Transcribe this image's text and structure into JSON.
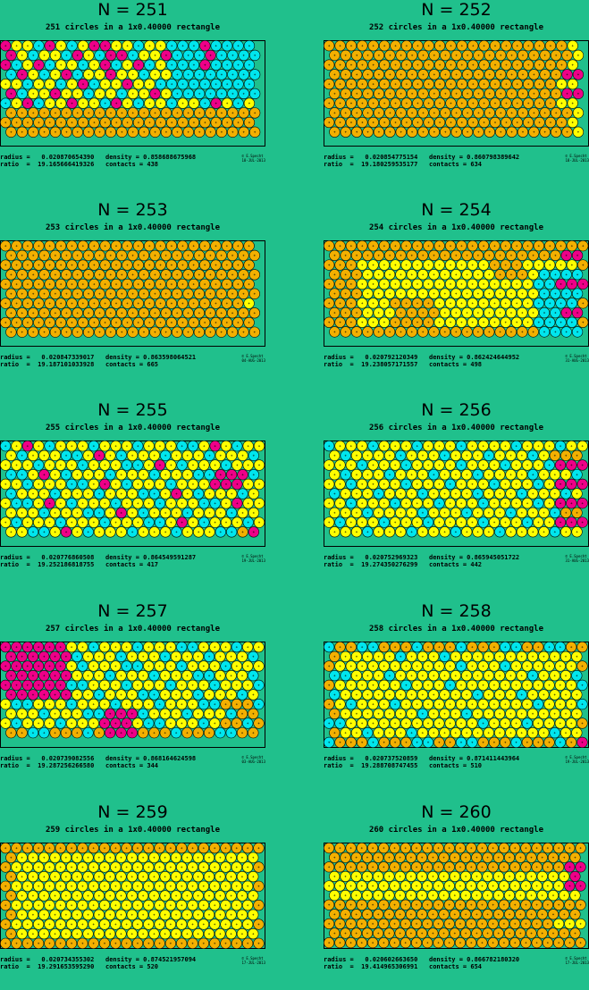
{
  "colors": {
    "background": "#20c08c",
    "rect": "#20c08c",
    "gold": "#f3b000",
    "yellow": "#ffff00",
    "cyan": "#00e6ee",
    "magenta": "#ee0088"
  },
  "panels": [
    {
      "n_label": "N = 251",
      "subtitle": "251 circles in a 1x0.40000 rectangle",
      "radius_line": "radius =   0.020870654390   density = 0.858688675968",
      "ratio_line": "ratio  =  19.165666419326   contacts = 438",
      "credit": [
        "© E.Specht",
        "18-JUL-2013"
      ],
      "pattern": "mixed-stripes",
      "radius": 0.02087065439,
      "diameter_ratio": 19.165666419326,
      "density": 0.858688675968,
      "contacts": 438
    },
    {
      "n_label": "N = 252",
      "subtitle": "252 circles in a 1x0.40000 rectangle",
      "radius_line": "radius =   0.020854775154   density = 0.860798389642",
      "ratio_line": "ratio  =  19.180259535177   contacts = 634",
      "credit": [
        "© E.Specht",
        "18-JUL-2013"
      ],
      "pattern": "mostly-gold",
      "radius": 0.020854775154,
      "diameter_ratio": 19.180259535177,
      "density": 0.860798389642,
      "contacts": 634
    },
    {
      "n_label": "N = 253",
      "subtitle": "253 circles in a 1x0.40000 rectangle",
      "radius_line": "radius =   0.020847339017   density = 0.863598064521",
      "ratio_line": "ratio  =  19.187101033928   contacts = 665",
      "credit": [
        "© E.Specht",
        "04-AUG-2013"
      ],
      "pattern": "all-gold",
      "radius": 0.020847339017,
      "diameter_ratio": 19.187101033928,
      "density": 0.863598064521,
      "contacts": 665
    },
    {
      "n_label": "N = 254",
      "subtitle": "254 circles in a 1x0.40000 rectangle",
      "radius_line": "radius =   0.020792120349   density = 0.862424644952",
      "ratio_line": "ratio  =  19.238057171557   contacts = 498",
      "credit": [
        "© E.Specht",
        "31-AUG-2013"
      ],
      "pattern": "gold-yellow-blend",
      "radius": 0.020792120349,
      "diameter_ratio": 19.238057171557,
      "density": 0.862424644952,
      "contacts": 498
    },
    {
      "n_label": "N = 255",
      "subtitle": "255 circles in a 1x0.40000 rectangle",
      "radius_line": "radius =   0.020776860508   density = 0.864549591287",
      "ratio_line": "ratio  =  19.252186818755   contacts = 417",
      "credit": [
        "© E.Specht",
        "19-JUL-2013"
      ],
      "pattern": "cyan-yellow-mix",
      "radius": 0.020776860508,
      "diameter_ratio": 19.252186818755,
      "density": 0.864549591287,
      "contacts": 417
    },
    {
      "n_label": "N = 256",
      "subtitle": "256 circles in a 1x0.40000 rectangle",
      "radius_line": "radius =   0.020752969323   density = 0.865945051722",
      "ratio_line": "ratio  =  19.274350276299   contacts = 442",
      "credit": [
        "© E.Specht",
        "31-AUG-2013"
      ],
      "pattern": "yellow-cyan",
      "radius": 0.020752969323,
      "diameter_ratio": 19.274350276299,
      "density": 0.865945051722,
      "contacts": 442
    },
    {
      "n_label": "N = 257",
      "subtitle": "257 circles in a 1x0.40000 rectangle",
      "radius_line": "radius =   0.020739082556   density = 0.868164624598",
      "ratio_line": "ratio  =  19.287256266580   contacts = 344",
      "credit": [
        "© E.Specht",
        "03-AUG-2013"
      ],
      "pattern": "magenta-left",
      "radius": 0.020739082556,
      "diameter_ratio": 19.28725626658,
      "density": 0.868164624598,
      "contacts": 344
    },
    {
      "n_label": "N = 258",
      "subtitle": "258 circles in a 1x0.40000 rectangle",
      "radius_line": "radius =   0.020737520859   density = 0.871411443964",
      "ratio_line": "ratio  =  19.288708747455   contacts = 510",
      "credit": [
        "© E.Specht",
        "19-JUL-2013"
      ],
      "pattern": "yellow-dominant",
      "radius": 0.020737520859,
      "diameter_ratio": 19.288708747455,
      "density": 0.871411443964,
      "contacts": 510
    },
    {
      "n_label": "N = 259",
      "subtitle": "259 circles in a 1x0.40000 rectangle",
      "radius_line": "radius =   0.020734355302   density = 0.874521957094",
      "ratio_line": "ratio  =  19.291653595290   contacts = 520",
      "credit": [
        "© E.Specht",
        "17-JUL-2013"
      ],
      "pattern": "yellow-gold-edge",
      "radius": 0.020734355302,
      "diameter_ratio": 19.29165359529,
      "density": 0.874521957094,
      "contacts": 520
    },
    {
      "n_label": "N = 260",
      "subtitle": "260 circles in a 1x0.40000 rectangle",
      "radius_line": "radius =   0.020602663650   density = 0.866782180320",
      "ratio_line": "ratio  =  19.414965306991   contacts = 654",
      "credit": [
        "© E.Specht",
        "17-JUL-2013"
      ],
      "pattern": "gold-yellow-bands",
      "radius": 0.02060266365,
      "diameter_ratio": 19.414965306991,
      "density": 0.86678218032,
      "contacts": 654
    }
  ]
}
